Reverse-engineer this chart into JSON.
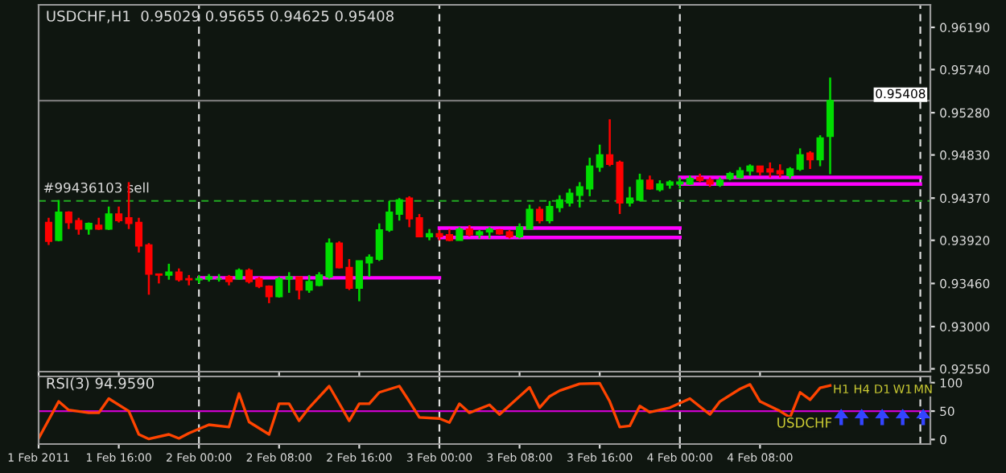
{
  "chart_data": [
    {
      "type": "candlestick",
      "title": "USDCHF,H1  0.95029 0.95655 0.94625 0.95408",
      "x": [
        "2011-02-01T09:00",
        "2011-02-01T10:00",
        "2011-02-01T11:00",
        "2011-02-01T12:00",
        "2011-02-01T13:00",
        "2011-02-01T14:00",
        "2011-02-01T15:00",
        "2011-02-01T16:00",
        "2011-02-01T17:00",
        "2011-02-01T18:00",
        "2011-02-01T19:00",
        "2011-02-01T20:00",
        "2011-02-01T21:00",
        "2011-02-01T22:00",
        "2011-02-01T23:00",
        "2011-02-02T00:00",
        "2011-02-02T01:00",
        "2011-02-02T02:00",
        "2011-02-02T03:00",
        "2011-02-02T04:00",
        "2011-02-02T05:00",
        "2011-02-02T06:00",
        "2011-02-02T07:00",
        "2011-02-02T08:00",
        "2011-02-02T09:00",
        "2011-02-02T10:00",
        "2011-02-02T11:00",
        "2011-02-02T12:00",
        "2011-02-02T13:00",
        "2011-02-02T14:00",
        "2011-02-02T15:00",
        "2011-02-02T16:00",
        "2011-02-02T17:00",
        "2011-02-02T18:00",
        "2011-02-02T19:00",
        "2011-02-02T20:00",
        "2011-02-02T21:00",
        "2011-02-02T22:00",
        "2011-02-02T23:00",
        "2011-02-03T00:00",
        "2011-02-03T01:00",
        "2011-02-03T02:00",
        "2011-02-03T03:00",
        "2011-02-03T04:00",
        "2011-02-03T05:00",
        "2011-02-03T06:00",
        "2011-02-03T07:00",
        "2011-02-03T08:00",
        "2011-02-03T09:00",
        "2011-02-03T10:00",
        "2011-02-03T11:00",
        "2011-02-03T12:00",
        "2011-02-03T13:00",
        "2011-02-03T14:00",
        "2011-02-03T15:00",
        "2011-02-03T16:00",
        "2011-02-03T17:00",
        "2011-02-03T18:00",
        "2011-02-03T19:00",
        "2011-02-03T20:00",
        "2011-02-03T21:00",
        "2011-02-03T22:00",
        "2011-02-03T23:00",
        "2011-02-04T00:00",
        "2011-02-04T01:00",
        "2011-02-04T02:00",
        "2011-02-04T03:00",
        "2011-02-04T04:00",
        "2011-02-04T05:00",
        "2011-02-04T06:00",
        "2011-02-04T07:00",
        "2011-02-04T08:00",
        "2011-02-04T09:00",
        "2011-02-04T10:00",
        "2011-02-04T11:00",
        "2011-02-04T12:00",
        "2011-02-04T13:00",
        "2011-02-04T14:00",
        "2011-02-04T15:00"
      ],
      "ohlc": [
        [
          0.9411,
          0.9416,
          0.9387,
          0.9391
        ],
        [
          0.9392,
          0.9435,
          0.9391,
          0.9422
        ],
        [
          0.9422,
          0.9423,
          0.9404,
          0.9411
        ],
        [
          0.9413,
          0.9416,
          0.9398,
          0.9404
        ],
        [
          0.9404,
          0.9411,
          0.9398,
          0.941
        ],
        [
          0.9408,
          0.9416,
          0.9403,
          0.9404
        ],
        [
          0.9404,
          0.9428,
          0.9403,
          0.942
        ],
        [
          0.942,
          0.9428,
          0.9411,
          0.9413
        ],
        [
          0.9416,
          0.9454,
          0.9404,
          0.941
        ],
        [
          0.9411,
          0.9416,
          0.9379,
          0.9386
        ],
        [
          0.9387,
          0.9389,
          0.9334,
          0.9356
        ],
        [
          0.9356,
          0.9356,
          0.9346,
          0.9355
        ],
        [
          0.9355,
          0.9367,
          0.935,
          0.9358
        ],
        [
          0.9358,
          0.9362,
          0.9348,
          0.935
        ],
        [
          0.9351,
          0.9355,
          0.9344,
          0.935
        ],
        [
          0.935,
          0.9355,
          0.9346,
          0.9351
        ],
        [
          0.9351,
          0.9356,
          0.9348,
          0.9353
        ],
        [
          0.9351,
          0.9356,
          0.9348,
          0.9351
        ],
        [
          0.9353,
          0.9355,
          0.9344,
          0.9348
        ],
        [
          0.9351,
          0.9362,
          0.935,
          0.936
        ],
        [
          0.936,
          0.9362,
          0.9346,
          0.9348
        ],
        [
          0.9351,
          0.9353,
          0.9341,
          0.9343
        ],
        [
          0.9343,
          0.9344,
          0.9325,
          0.9332
        ],
        [
          0.9332,
          0.9353,
          0.9331,
          0.9351
        ],
        [
          0.9351,
          0.9358,
          0.9336,
          0.9353
        ],
        [
          0.9353,
          0.9353,
          0.9329,
          0.9339
        ],
        [
          0.9339,
          0.9355,
          0.9336,
          0.9348
        ],
        [
          0.9344,
          0.9358,
          0.9343,
          0.9355
        ],
        [
          0.9353,
          0.9394,
          0.9351,
          0.9389
        ],
        [
          0.9389,
          0.9391,
          0.9362,
          0.9363
        ],
        [
          0.9363,
          0.9372,
          0.9339,
          0.9341
        ],
        [
          0.9341,
          0.937,
          0.9327,
          0.937
        ],
        [
          0.9368,
          0.9377,
          0.9353,
          0.9374
        ],
        [
          0.9372,
          0.941,
          0.937,
          0.9403
        ],
        [
          0.9403,
          0.9434,
          0.9401,
          0.9422
        ],
        [
          0.942,
          0.9437,
          0.9413,
          0.9435
        ],
        [
          0.9437,
          0.9439,
          0.9406,
          0.9415
        ],
        [
          0.9416,
          0.942,
          0.9396,
          0.9396
        ],
        [
          0.9396,
          0.9404,
          0.9392,
          0.9399
        ],
        [
          0.9399,
          0.9403,
          0.9392,
          0.9396
        ],
        [
          0.9398,
          0.9404,
          0.9391,
          0.9392
        ],
        [
          0.9392,
          0.9406,
          0.9392,
          0.9404
        ],
        [
          0.9404,
          0.9408,
          0.9396,
          0.9398
        ],
        [
          0.9398,
          0.9403,
          0.9394,
          0.9401
        ],
        [
          0.9401,
          0.9406,
          0.9394,
          0.9404
        ],
        [
          0.9403,
          0.9404,
          0.9398,
          0.9399
        ],
        [
          0.9401,
          0.9403,
          0.9394,
          0.9396
        ],
        [
          0.9396,
          0.941,
          0.9394,
          0.9406
        ],
        [
          0.9404,
          0.943,
          0.9404,
          0.9425
        ],
        [
          0.9425,
          0.9428,
          0.941,
          0.9413
        ],
        [
          0.9413,
          0.9434,
          0.941,
          0.9428
        ],
        [
          0.9427,
          0.944,
          0.9422,
          0.9435
        ],
        [
          0.9432,
          0.9447,
          0.9428,
          0.9442
        ],
        [
          0.944,
          0.9454,
          0.9427,
          0.9449
        ],
        [
          0.9447,
          0.948,
          0.9439,
          0.9471
        ],
        [
          0.947,
          0.9494,
          0.9465,
          0.9483
        ],
        [
          0.9483,
          0.9521,
          0.9471,
          0.9473
        ],
        [
          0.9475,
          0.9477,
          0.942,
          0.9432
        ],
        [
          0.9432,
          0.9449,
          0.9428,
          0.9437
        ],
        [
          0.9435,
          0.9463,
          0.9434,
          0.9456
        ],
        [
          0.9456,
          0.9461,
          0.9446,
          0.9447
        ],
        [
          0.9446,
          0.9456,
          0.9444,
          0.9452
        ],
        [
          0.9451,
          0.9456,
          0.9447,
          0.9454
        ],
        [
          0.9452,
          0.9459,
          0.9447,
          0.9454
        ],
        [
          0.9452,
          0.9461,
          0.9451,
          0.9458
        ],
        [
          0.9459,
          0.9463,
          0.9454,
          0.9456
        ],
        [
          0.9456,
          0.9459,
          0.9449,
          0.9452
        ],
        [
          0.9451,
          0.9459,
          0.9449,
          0.9456
        ],
        [
          0.9458,
          0.9465,
          0.9456,
          0.9463
        ],
        [
          0.9459,
          0.947,
          0.9458,
          0.9466
        ],
        [
          0.9466,
          0.9473,
          0.9461,
          0.9471
        ],
        [
          0.9471,
          0.9471,
          0.9461,
          0.9465
        ],
        [
          0.9468,
          0.9475,
          0.9459,
          0.9465
        ],
        [
          0.9466,
          0.9473,
          0.9459,
          0.9463
        ],
        [
          0.9461,
          0.947,
          0.9458,
          0.9468
        ],
        [
          0.9468,
          0.949,
          0.9466,
          0.9483
        ],
        [
          0.9485,
          0.9487,
          0.9468,
          0.9478
        ],
        [
          0.9478,
          0.9504,
          0.9471,
          0.9501
        ],
        [
          0.95029,
          0.95655,
          0.94625,
          0.95408
        ]
      ],
      "colors": [
        "#ff0000",
        "#00dd00",
        "#ff0000",
        "#ff0000",
        "#00dd00",
        "#ff0000",
        "#00dd00",
        "#ff0000",
        "#ff0000",
        "#ff0000",
        "#ff0000",
        "#ff0000",
        "#00dd00",
        "#ff0000",
        "#ff0000",
        "#00dd00",
        "#00dd00",
        "#00dd00",
        "#ff0000",
        "#00dd00",
        "#ff0000",
        "#ff0000",
        "#ff0000",
        "#00dd00",
        "#00dd00",
        "#ff0000",
        "#00dd00",
        "#00dd00",
        "#00dd00",
        "#ff0000",
        "#ff0000",
        "#00dd00",
        "#00dd00",
        "#00dd00",
        "#00dd00",
        "#00dd00",
        "#ff0000",
        "#ff0000",
        "#00dd00",
        "#ff0000",
        "#ff0000",
        "#00dd00",
        "#ff0000",
        "#00dd00",
        "#00dd00",
        "#ff0000",
        "#ff0000",
        "#00dd00",
        "#00dd00",
        "#ff0000",
        "#00dd00",
        "#00dd00",
        "#00dd00",
        "#00dd00",
        "#00dd00",
        "#00dd00",
        "#ff0000",
        "#ff0000",
        "#00dd00",
        "#00dd00",
        "#ff0000",
        "#00dd00",
        "#00dd00",
        "#00dd00",
        "#00dd00",
        "#ff0000",
        "#ff0000",
        "#00dd00",
        "#00dd00",
        "#00dd00",
        "#00dd00",
        "#ff0000",
        "#ff0000",
        "#ff0000",
        "#00dd00",
        "#00dd00",
        "#ff0000",
        "#00dd00",
        "#00dd00"
      ],
      "series": [
        {
          "type": "line",
          "color": "#ff00ff",
          "x": [
            "2011-02-02T00:00",
            "2011-02-03T00:00"
          ],
          "values": [
            0.9352,
            0.9352
          ]
        },
        {
          "type": "line",
          "color": "#ff00ff",
          "x": [
            "2011-02-03T00:00",
            "2011-02-04T00:00"
          ],
          "values": [
            0.9405,
            0.9405
          ]
        },
        {
          "type": "line",
          "color": "#ff00ff",
          "x": [
            "2011-02-03T00:00",
            "2011-02-04T00:00"
          ],
          "values": [
            0.9395,
            0.9395
          ]
        },
        {
          "type": "line",
          "color": "#ff00ff",
          "x": [
            "2011-02-04T00:00",
            "2011-02-05T00:00"
          ],
          "values": [
            0.9459,
            0.9459
          ]
        },
        {
          "type": "line",
          "color": "#ff00ff",
          "x": [
            "2011-02-04T00:00",
            "2011-02-05T00:00"
          ],
          "values": [
            0.9452,
            0.9452
          ]
        }
      ],
      "ref_lines": [
        {
          "axis": "y",
          "value": 0.95408,
          "label": "0.95408",
          "color": "#777777",
          "line_style": "solid"
        },
        {
          "axis": "y",
          "value": 0.9434,
          "label": "#99436103 sell",
          "color": "#22aa22",
          "line_style": "dashed"
        },
        {
          "axis": "x",
          "value": "2011-02-02T00:00",
          "color": "#dddddd",
          "line_style": "dashed"
        },
        {
          "axis": "x",
          "value": "2011-02-03T00:00",
          "color": "#dddddd",
          "line_style": "dashed"
        },
        {
          "axis": "x",
          "value": "2011-02-04T00:00",
          "color": "#dddddd",
          "line_style": "dashed"
        },
        {
          "axis": "x",
          "value": "2011-02-05T00:00",
          "color": "#dddddd",
          "line_style": "dashed"
        }
      ],
      "xlim": [
        "2011-02-01T08:00",
        "2011-02-05T01:00"
      ],
      "xticks": [
        {
          "value": "2011-02-01T08:00",
          "label": null
        },
        {
          "value": "2011-02-01T16:00",
          "label": null
        },
        {
          "value": "2011-02-02T00:00",
          "label": null
        },
        {
          "value": "2011-02-02T08:00",
          "label": null
        },
        {
          "value": "2011-02-02T16:00",
          "label": null
        },
        {
          "value": "2011-02-03T00:00",
          "label": null
        },
        {
          "value": "2011-02-03T08:00",
          "label": null
        },
        {
          "value": "2011-02-03T16:00",
          "label": null
        },
        {
          "value": "2011-02-04T00:00",
          "label": null
        },
        {
          "value": "2011-02-04T08:00",
          "label": null
        }
      ],
      "ylim": [
        0.9252,
        0.9643
      ],
      "yticks": [
        {
          "value": 0.9255,
          "label": "0.92550"
        },
        {
          "value": 0.93,
          "label": "0.93000"
        },
        {
          "value": 0.9346,
          "label": "0.93460"
        },
        {
          "value": 0.9392,
          "label": "0.93920"
        },
        {
          "value": 0.9437,
          "label": "0.94370"
        },
        {
          "value": 0.9483,
          "label": "0.94830"
        },
        {
          "value": 0.9528,
          "label": "0.95280"
        },
        {
          "value": 0.9574,
          "label": "0.95740"
        },
        {
          "value": 0.9619,
          "label": "0.96190"
        }
      ],
      "tick_labels": "y"
    },
    {
      "type": "line",
      "title": "RSI(3) 94.9590",
      "color": "#ff4400",
      "x": [
        "2011-02-01T08:00",
        "2011-02-01T10:00",
        "2011-02-01T11:00",
        "2011-02-01T13:00",
        "2011-02-01T14:00",
        "2011-02-01T15:00",
        "2011-02-01T17:00",
        "2011-02-01T18:00",
        "2011-02-01T19:00",
        "2011-02-01T21:00",
        "2011-02-01T22:00",
        "2011-02-01T23:00",
        "2011-02-02T01:00",
        "2011-02-02T03:00",
        "2011-02-02T04:00",
        "2011-02-02T05:00",
        "2011-02-02T07:00",
        "2011-02-02T08:00",
        "2011-02-02T09:00",
        "2011-02-02T10:00",
        "2011-02-02T11:00",
        "2011-02-02T13:00",
        "2011-02-02T15:00",
        "2011-02-02T16:00",
        "2011-02-02T17:00",
        "2011-02-02T18:00",
        "2011-02-02T20:00",
        "2011-02-02T21:00",
        "2011-02-02T22:00",
        "2011-02-03T00:00",
        "2011-02-03T01:00",
        "2011-02-03T02:00",
        "2011-02-03T03:00",
        "2011-02-03T05:00",
        "2011-02-03T06:00",
        "2011-02-03T08:00",
        "2011-02-03T09:00",
        "2011-02-03T10:00",
        "2011-02-03T11:00",
        "2011-02-03T12:00",
        "2011-02-03T14:00",
        "2011-02-03T16:00",
        "2011-02-03T17:00",
        "2011-02-03T18:00",
        "2011-02-03T19:00",
        "2011-02-03T20:00",
        "2011-02-03T21:00",
        "2011-02-03T22:00",
        "2011-02-03T23:00",
        "2011-02-04T01:00",
        "2011-02-04T03:00",
        "2011-02-04T04:00",
        "2011-02-04T06:00",
        "2011-02-04T07:00",
        "2011-02-04T08:00",
        "2011-02-04T10:00",
        "2011-02-04T11:00",
        "2011-02-04T12:00",
        "2011-02-04T13:00",
        "2011-02-04T14:00",
        "2011-02-04T15:00"
      ],
      "values": [
        2,
        67,
        52,
        47,
        47,
        72,
        50,
        9,
        1,
        9,
        2,
        11,
        26,
        22,
        81,
        31,
        9,
        63,
        63,
        33,
        56,
        94,
        33,
        63,
        63,
        83,
        94,
        67,
        39,
        37,
        30,
        63,
        47,
        61,
        44,
        76,
        92,
        56,
        76,
        86,
        98,
        99,
        67,
        22,
        24,
        59,
        48,
        52,
        56,
        72,
        44,
        67,
        89,
        97,
        67,
        50,
        39,
        83,
        70,
        91,
        95
      ],
      "annotations": [
        "USDCHF",
        "H1",
        "H4",
        "D1",
        "W1",
        "MN"
      ],
      "ref_lines": [
        {
          "axis": "y",
          "value": 50,
          "color": "#cc00cc",
          "line_style": "solid"
        },
        {
          "axis": "x",
          "value": "2011-02-02T00:00",
          "color": "#dddddd",
          "line_style": "dashed"
        },
        {
          "axis": "x",
          "value": "2011-02-03T00:00",
          "color": "#dddddd",
          "line_style": "dashed"
        },
        {
          "axis": "x",
          "value": "2011-02-04T00:00",
          "color": "#dddddd",
          "line_style": "dashed"
        },
        {
          "axis": "x",
          "value": "2011-02-05T00:00",
          "color": "#dddddd",
          "line_style": "dashed"
        }
      ],
      "xlim": [
        "2011-02-01T08:00",
        "2011-02-05T01:00"
      ],
      "xticks": [
        {
          "value": "2011-02-01T08:00",
          "label": "1 Feb 2011"
        },
        {
          "value": "2011-02-01T16:00",
          "label": "1 Feb 16:00"
        },
        {
          "value": "2011-02-02T00:00",
          "label": "2 Feb 00:00"
        },
        {
          "value": "2011-02-02T08:00",
          "label": "2 Feb 08:00"
        },
        {
          "value": "2011-02-02T16:00",
          "label": "2 Feb 16:00"
        },
        {
          "value": "2011-02-03T00:00",
          "label": "3 Feb 00:00"
        },
        {
          "value": "2011-02-03T08:00",
          "label": "3 Feb 08:00"
        },
        {
          "value": "2011-02-03T16:00",
          "label": "3 Feb 16:00"
        },
        {
          "value": "2011-02-04T00:00",
          "label": "4 Feb 00:00"
        },
        {
          "value": "2011-02-04T08:00",
          "label": "4 Feb 08:00"
        }
      ],
      "ylim": [
        -8,
        111
      ],
      "yticks": [
        0,
        50,
        100
      ]
    }
  ]
}
